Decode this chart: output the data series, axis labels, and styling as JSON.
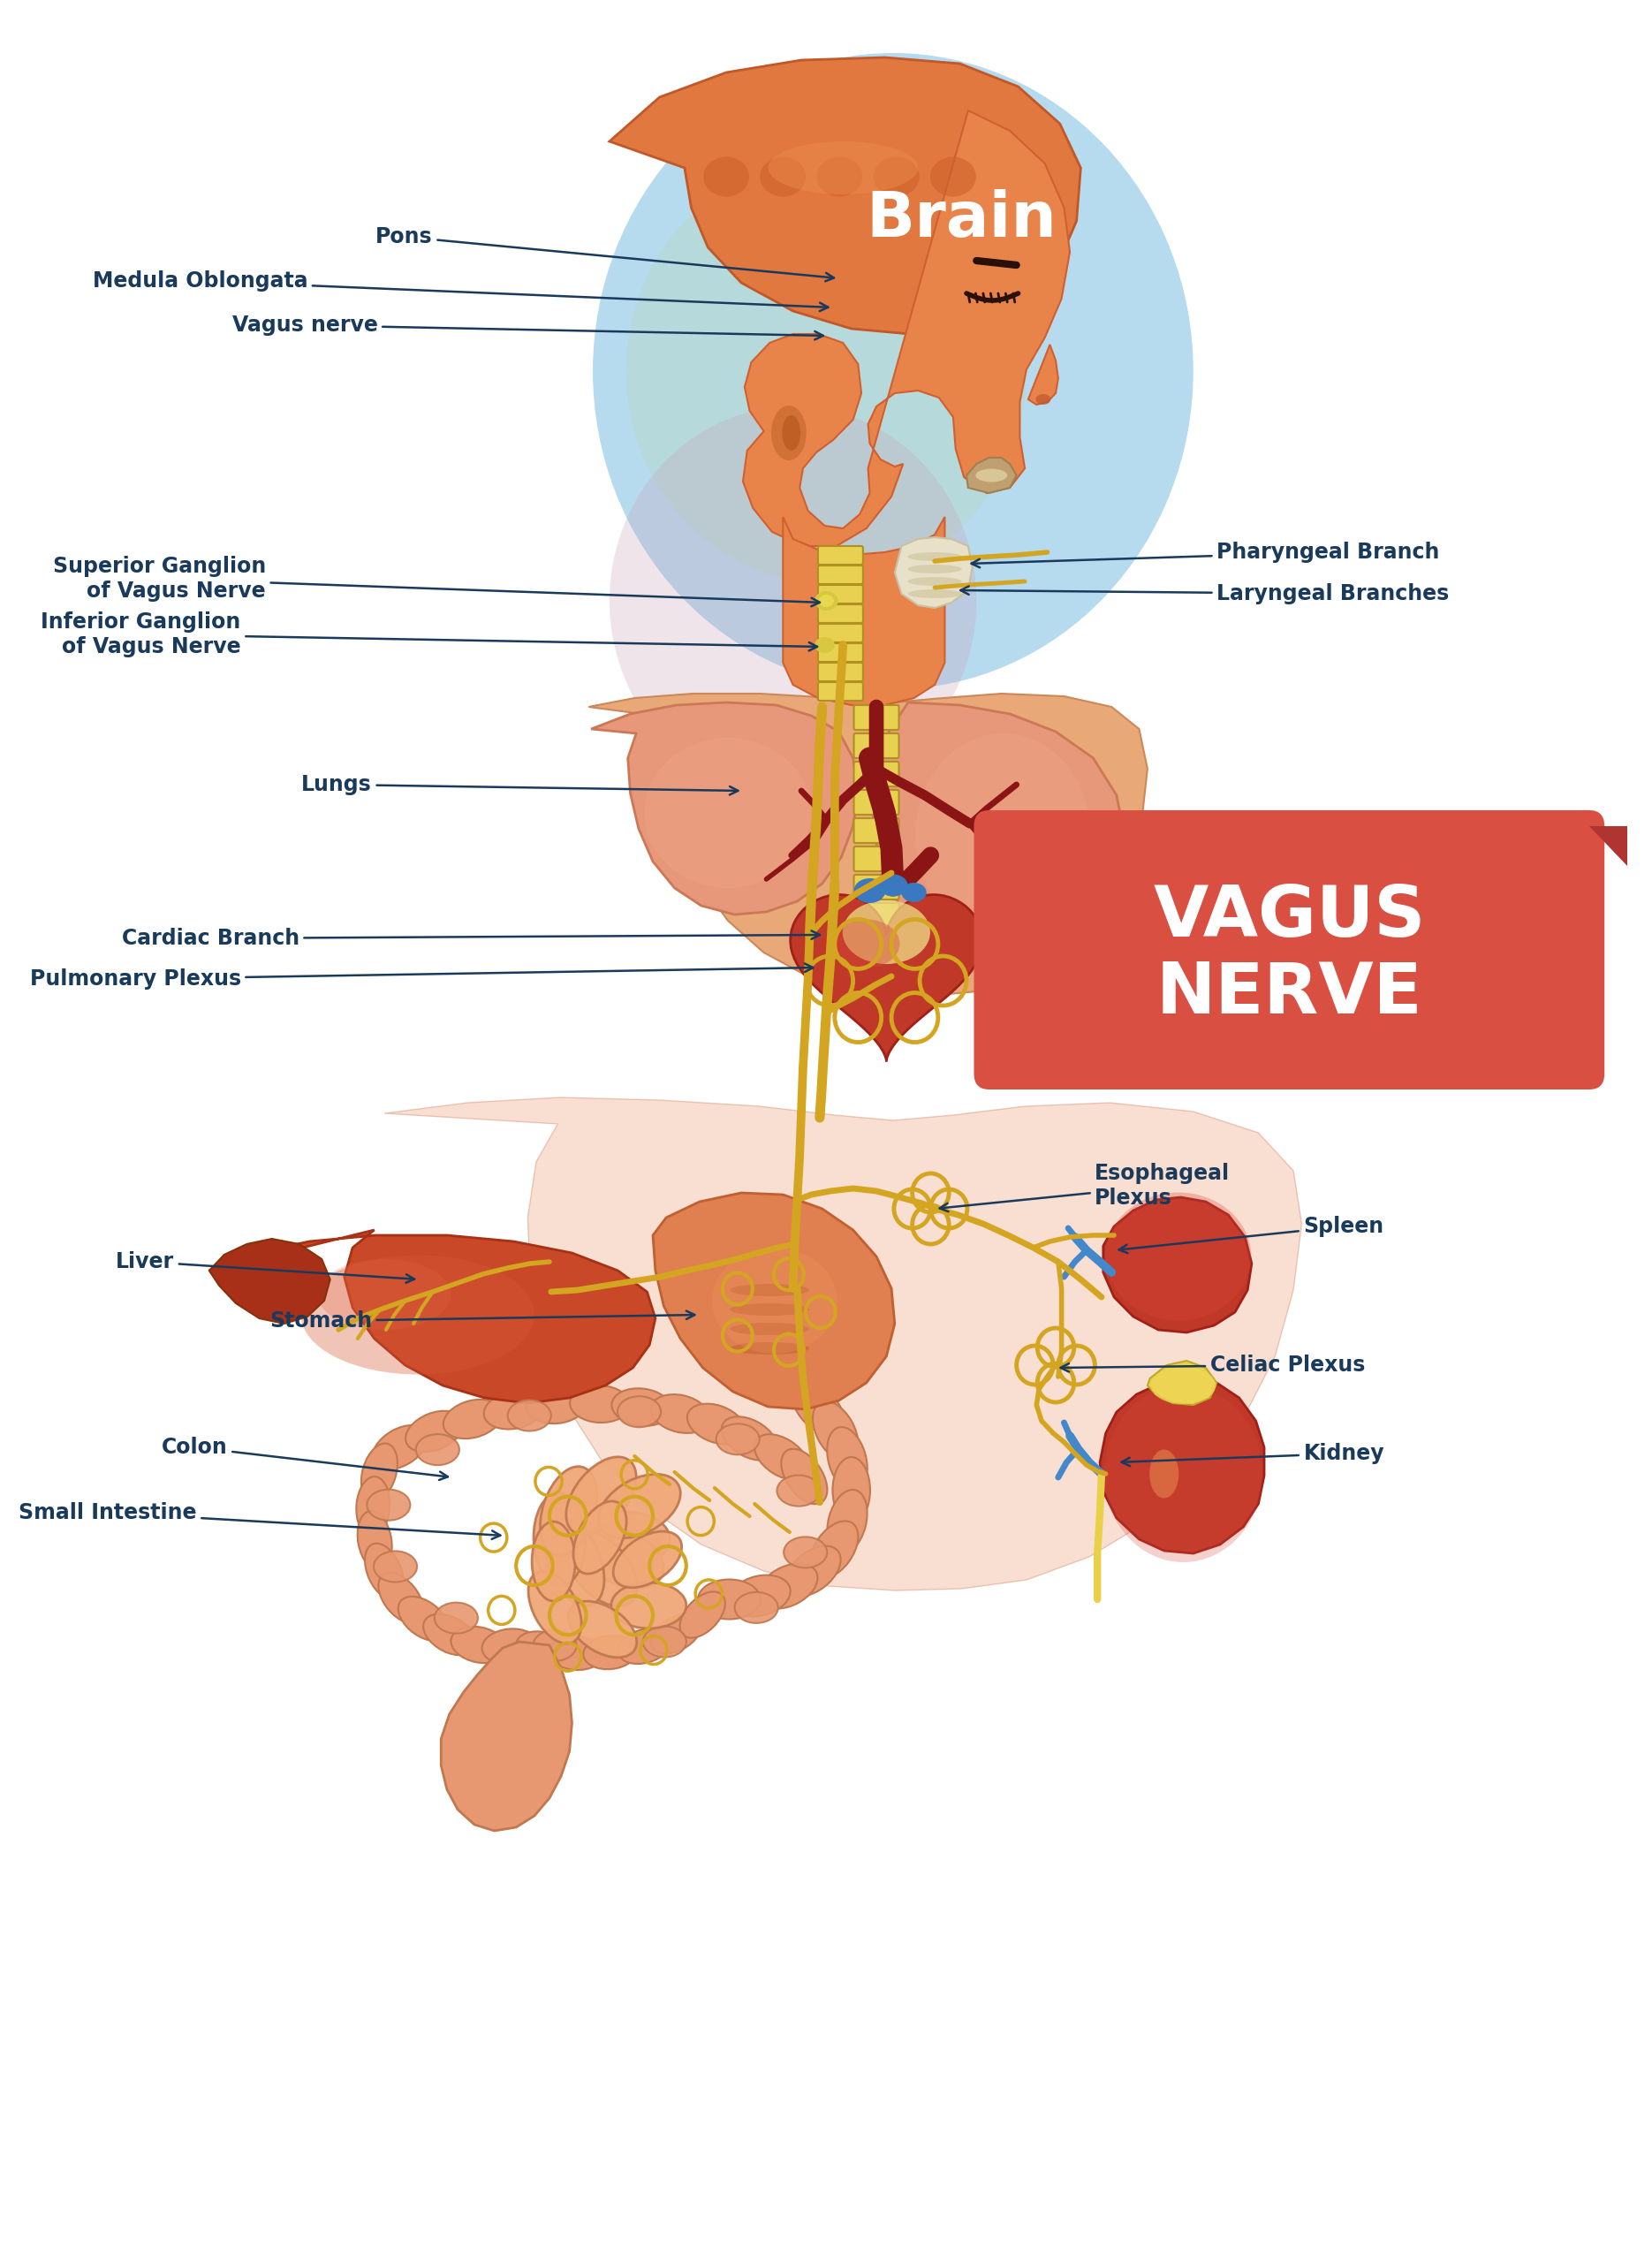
{
  "bg_color": "#ffffff",
  "title_line1": "VAGUS",
  "title_line2": "NERVE",
  "label_color": "#1a3a5c",
  "label_fontsize": 17,
  "title_fontsize": 58,
  "brain_label": "Brain",
  "brain_label_color": "#ffffff",
  "brain_label_fontsize": 52,
  "nerve_color": "#d4a520",
  "box_color": "#d94f42",
  "box_text_color": "#ffffff",
  "skin_orange": "#e8834a",
  "skin_dark": "#d06030",
  "lung_color": "#e8987a",
  "heart_color": "#c04030",
  "liver_color": "#c04828",
  "stomach_color": "#e08858",
  "intestine_color": "#e8a070",
  "blue_vessel": "#4488cc",
  "spine_color": "#e8d050",
  "circle_bg": "#a8d8f0",
  "circle_pink": "#d4a8c0"
}
